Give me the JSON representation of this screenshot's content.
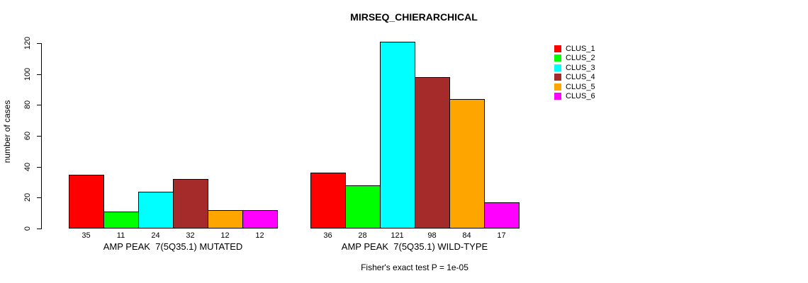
{
  "chart_data": {
    "type": "bar",
    "title": "MIRSEQ_CHIERARCHICAL",
    "ylabel": "number of cases",
    "ylim": [
      0,
      130
    ],
    "yticks": [
      0,
      20,
      40,
      60,
      80,
      100,
      120
    ],
    "grid": false,
    "legend_position": "top-right",
    "background_color": "#ffffff",
    "categories": [
      "AMP PEAK  7(5Q35.1) MUTATED",
      "AMP PEAK  7(5Q35.1) WILD-TYPE"
    ],
    "series": [
      {
        "name": "CLUS_1",
        "color": "#ff0000",
        "values": [
          35,
          36
        ]
      },
      {
        "name": "CLUS_2",
        "color": "#00ff00",
        "values": [
          11,
          28
        ]
      },
      {
        "name": "CLUS_3",
        "color": "#00ffff",
        "values": [
          24,
          121
        ]
      },
      {
        "name": "CLUS_4",
        "color": "#a52a2a",
        "values": [
          32,
          98
        ]
      },
      {
        "name": "CLUS_5",
        "color": "#ffa500",
        "values": [
          12,
          84
        ]
      },
      {
        "name": "CLUS_6",
        "color": "#ff00ff",
        "values": [
          12,
          17
        ]
      }
    ],
    "bar_value_labels": [
      [
        35,
        11,
        24,
        32,
        12,
        12
      ],
      [
        36,
        28,
        121,
        98,
        84,
        17
      ]
    ],
    "annotation": "Fisher's exact test P = 1e-05"
  }
}
